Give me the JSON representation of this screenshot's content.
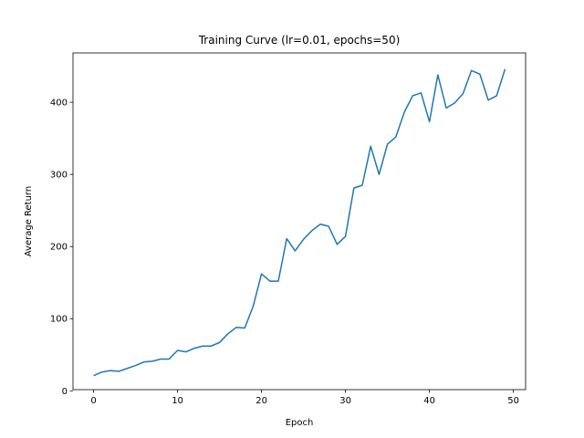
{
  "chart_data": {
    "type": "line",
    "title": "Training Curve (lr=0.01, epochs=50)",
    "xlabel": "Epoch",
    "ylabel": "Average Return",
    "xlim": [
      -2.45,
      51.45
    ],
    "ylim": [
      1.6,
      468.4
    ],
    "xticks": [
      0,
      10,
      20,
      30,
      40,
      50
    ],
    "yticks": [
      0,
      100,
      200,
      300,
      400
    ],
    "grid": false,
    "legend": "none",
    "series": [
      {
        "color": "#1f77b4",
        "x": [
          0,
          1,
          2,
          3,
          4,
          5,
          6,
          7,
          8,
          9,
          10,
          11,
          12,
          13,
          14,
          15,
          16,
          17,
          18,
          19,
          20,
          21,
          22,
          23,
          24,
          25,
          26,
          27,
          28,
          29,
          30,
          31,
          32,
          33,
          34,
          35,
          36,
          37,
          38,
          39,
          40,
          41,
          42,
          43,
          44,
          45,
          46,
          47,
          48,
          49
        ],
        "y": [
          21,
          26,
          28,
          27,
          31,
          35,
          40,
          41,
          44,
          44,
          56,
          54,
          59,
          62,
          62,
          67,
          79,
          88,
          87,
          117,
          162,
          152,
          152,
          211,
          194,
          210,
          222,
          231,
          228,
          203,
          214,
          281,
          285,
          339,
          300,
          342,
          352,
          386,
          409,
          413,
          373,
          438,
          392,
          399,
          412,
          444,
          439,
          403,
          409,
          446
        ]
      }
    ]
  }
}
